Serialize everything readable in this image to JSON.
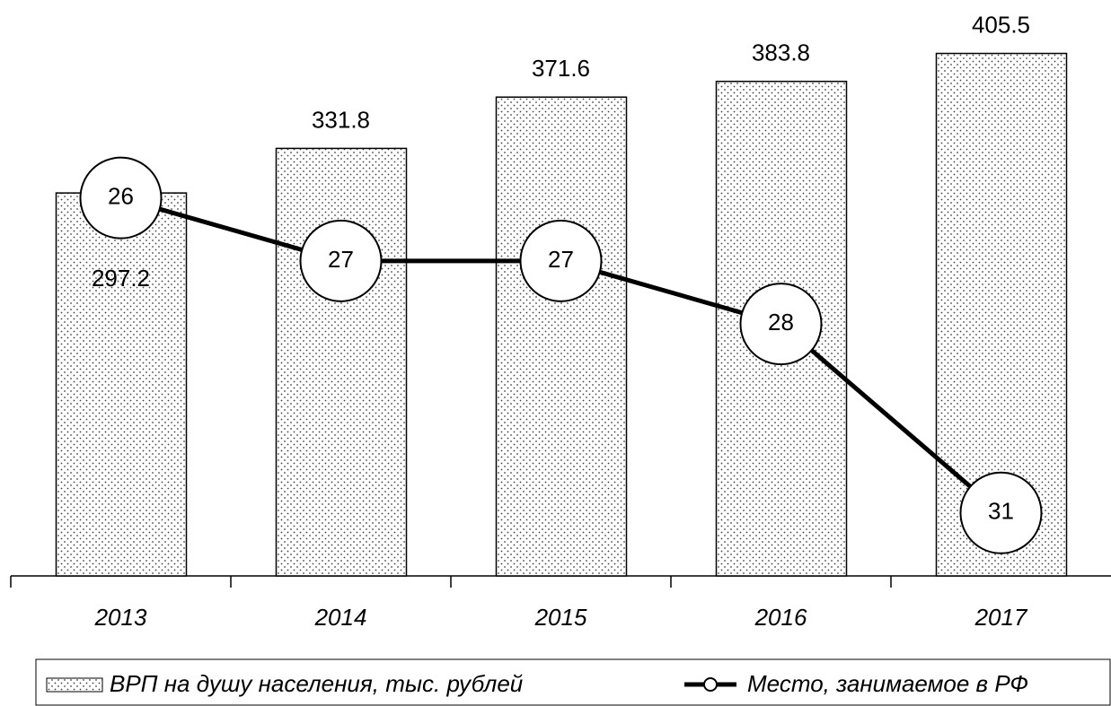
{
  "chart_data": {
    "type": "combo",
    "categories": [
      "2013",
      "2014",
      "2015",
      "2016",
      "2017"
    ],
    "series": [
      {
        "name": "ВРП на душу населения, тыс. рублей",
        "type": "bar",
        "color": "#000000",
        "values": [
          297.2,
          331.8,
          371.6,
          383.8,
          405.5
        ]
      },
      {
        "name": "Место, занимаемое в РФ",
        "type": "line",
        "axis": "y2",
        "color": "#000000",
        "values": [
          26,
          27,
          27,
          28,
          31
        ]
      }
    ],
    "ylim": [
      0,
      440
    ],
    "y2lim": [
      32,
      23
    ],
    "grid": false,
    "legend": "bottom"
  }
}
